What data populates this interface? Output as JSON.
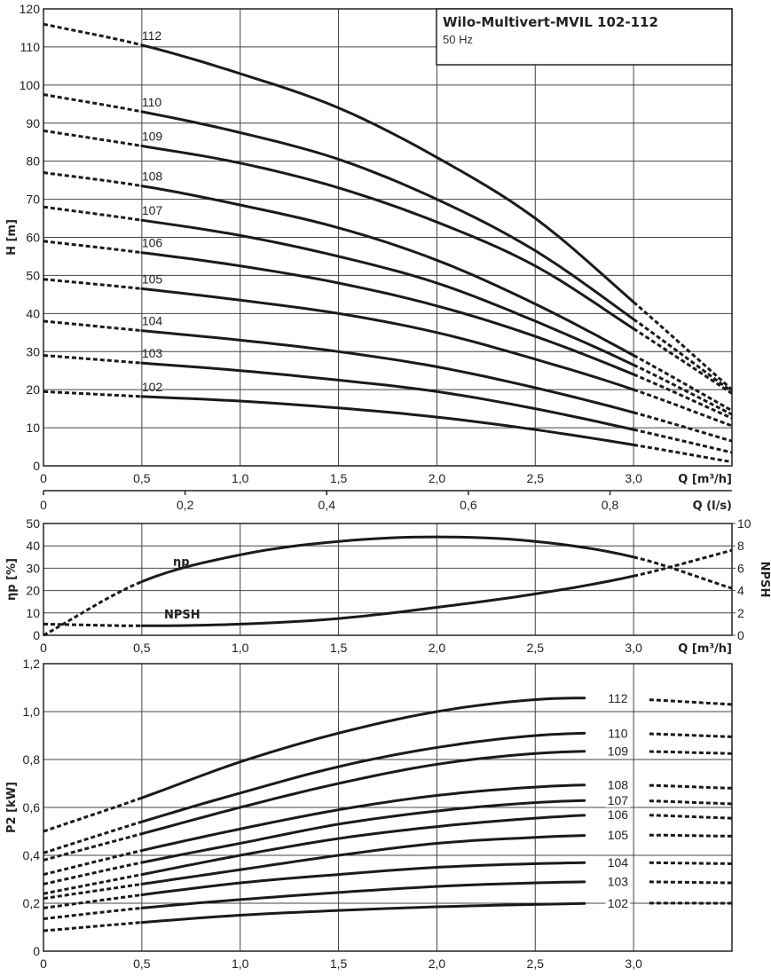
{
  "chart_data": [
    {
      "type": "line",
      "title": "Wilo-Multivert-MVIL 102-112",
      "subtitle": "50 Hz",
      "xlabel": "Q [m³/h]",
      "ylabel": "H [m]",
      "xlim": [
        0,
        3.5
      ],
      "ylim": [
        0,
        120
      ],
      "grid": true,
      "x": [
        0,
        0.5,
        1.0,
        1.5,
        2.0,
        2.5,
        3.0,
        3.5
      ],
      "solid_range": [
        0.5,
        3.0
      ],
      "xticks": [
        0,
        0.5,
        1.0,
        1.5,
        2.0,
        2.5,
        3.0
      ],
      "xtick_labels": [
        "0",
        "0,5",
        "1,0",
        "1,5",
        "2,0",
        "2,5",
        "3,0"
      ],
      "yticks": [
        0,
        10,
        20,
        30,
        40,
        50,
        60,
        70,
        80,
        90,
        100,
        110,
        120
      ],
      "ytick_labels": [
        "0",
        "10",
        "20",
        "30",
        "40",
        "50",
        "60",
        "70",
        "80",
        "90",
        "100",
        "110",
        "120"
      ],
      "secondary_x": {
        "label": "Q (l/s)",
        "ticks": [
          0,
          0.2,
          0.4,
          0.6,
          0.8
        ],
        "tick_labels": [
          "0",
          "0,2",
          "0,4",
          "0,6",
          "0,8"
        ]
      },
      "series": [
        {
          "name": "112",
          "values": [
            116,
            110.5,
            103,
            94,
            81,
            65,
            43,
            20
          ]
        },
        {
          "name": "110",
          "values": [
            97.5,
            93,
            87.5,
            80.5,
            70,
            56.5,
            38.5,
            19.5
          ]
        },
        {
          "name": "109",
          "values": [
            88,
            84,
            79.5,
            73,
            64,
            52.5,
            36,
            19
          ]
        },
        {
          "name": "108",
          "values": [
            77,
            73.5,
            68.5,
            62.5,
            54,
            42.5,
            29,
            14.5
          ]
        },
        {
          "name": "107",
          "values": [
            68,
            64.5,
            60.5,
            55,
            48,
            38,
            26.5,
            13.5
          ]
        },
        {
          "name": "106",
          "values": [
            59,
            56,
            52.5,
            48,
            42,
            34,
            24,
            12.5
          ]
        },
        {
          "name": "105",
          "values": [
            49,
            46.5,
            43.5,
            40,
            35,
            28,
            20,
            10.5
          ]
        },
        {
          "name": "104",
          "values": [
            38,
            35.5,
            33,
            30,
            26,
            20.5,
            14,
            6.5
          ]
        },
        {
          "name": "103",
          "values": [
            29,
            27,
            25,
            22.5,
            19.5,
            15,
            9.5,
            3.5
          ]
        },
        {
          "name": "102",
          "values": [
            19.5,
            18.2,
            17,
            15.2,
            12.8,
            9.5,
            5.5,
            1
          ]
        }
      ]
    },
    {
      "type": "line",
      "xlabel": "Q [m³/h]",
      "ylabel": "ηp [%]",
      "y2label": "NPSH",
      "xlim": [
        0,
        3.5
      ],
      "ylim": [
        0,
        50
      ],
      "y2lim": [
        0,
        10
      ],
      "grid": true,
      "x": [
        0,
        0.5,
        1.0,
        1.5,
        2.0,
        2.5,
        3.0,
        3.5
      ],
      "solid_range": [
        0.5,
        3.0
      ],
      "xticks": [
        0,
        0.5,
        1.0,
        1.5,
        2.0,
        2.5,
        3.0
      ],
      "xtick_labels": [
        "0",
        "0,5",
        "1,0",
        "1,5",
        "2,0",
        "2,5",
        "3,0"
      ],
      "yticks": [
        0,
        10,
        20,
        30,
        40,
        50
      ],
      "ytick_labels": [
        "0",
        "10",
        "20",
        "30",
        "40",
        "50"
      ],
      "y2ticks": [
        0,
        2,
        4,
        6,
        8,
        10
      ],
      "y2tick_labels": [
        "0",
        "2",
        "4",
        "6",
        "8",
        "10"
      ],
      "series": [
        {
          "name": "ηp",
          "axis": "left",
          "values": [
            0,
            24,
            36,
            42,
            44,
            42,
            35,
            21
          ]
        },
        {
          "name": "NPSH",
          "axis": "right",
          "values": [
            1.0,
            0.85,
            1.0,
            1.5,
            2.5,
            3.7,
            5.3,
            7.6
          ]
        }
      ]
    },
    {
      "type": "line",
      "xlabel": "",
      "ylabel": "P2 [kW]",
      "xlim": [
        0,
        3.5
      ],
      "ylim": [
        0,
        1.2
      ],
      "grid": true,
      "x": [
        0,
        0.5,
        1.0,
        1.5,
        2.0,
        2.5,
        2.9,
        3.5
      ],
      "solid_range": [
        0.5,
        2.9
      ],
      "xticks": [
        0,
        0.5,
        1.0,
        1.5,
        2.0,
        2.5,
        3.0
      ],
      "xtick_labels": [
        "0",
        "0,5",
        "1,0",
        "1,5",
        "2,0",
        "2,5",
        "3,0"
      ],
      "yticks": [
        0,
        0.2,
        0.4,
        0.6,
        0.8,
        1.0,
        1.2
      ],
      "ytick_labels": [
        "0",
        "0,2",
        "0,4",
        "0,6",
        "0,8",
        "1,0",
        "1,2"
      ],
      "series": [
        {
          "name": "112",
          "values": [
            0.5,
            0.64,
            0.79,
            0.91,
            1.0,
            1.05,
            1.055,
            1.03
          ]
        },
        {
          "name": "110",
          "values": [
            0.41,
            0.54,
            0.66,
            0.77,
            0.85,
            0.9,
            0.91,
            0.895
          ]
        },
        {
          "name": "109",
          "values": [
            0.38,
            0.49,
            0.6,
            0.7,
            0.78,
            0.825,
            0.835,
            0.825
          ]
        },
        {
          "name": "108",
          "values": [
            0.32,
            0.42,
            0.51,
            0.59,
            0.65,
            0.685,
            0.695,
            0.68
          ]
        },
        {
          "name": "107",
          "values": [
            0.28,
            0.37,
            0.45,
            0.53,
            0.585,
            0.62,
            0.63,
            0.615
          ]
        },
        {
          "name": "106",
          "values": [
            0.24,
            0.32,
            0.4,
            0.47,
            0.52,
            0.555,
            0.57,
            0.555
          ]
        },
        {
          "name": "105",
          "values": [
            0.22,
            0.28,
            0.34,
            0.4,
            0.45,
            0.475,
            0.485,
            0.48
          ]
        },
        {
          "name": "104",
          "values": [
            0.18,
            0.235,
            0.285,
            0.32,
            0.35,
            0.365,
            0.37,
            0.365
          ]
        },
        {
          "name": "103",
          "values": [
            0.135,
            0.18,
            0.215,
            0.245,
            0.27,
            0.285,
            0.29,
            0.285
          ]
        },
        {
          "name": "102",
          "values": [
            0.085,
            0.12,
            0.15,
            0.17,
            0.185,
            0.195,
            0.2,
            0.2
          ]
        }
      ]
    }
  ]
}
